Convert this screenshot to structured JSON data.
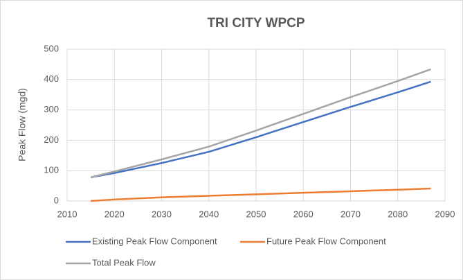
{
  "chart_data": {
    "type": "line",
    "title": "TRI CITY WPCP",
    "y_label": "Peak Flow (mgd)",
    "x": [
      2015,
      2020,
      2030,
      2040,
      2050,
      2060,
      2070,
      2080,
      2087
    ],
    "series": [
      {
        "name": "Existing Peak Flow Component",
        "color": "#4472c4",
        "values": [
          78,
          92,
          125,
          162,
          210,
          260,
          310,
          358,
          393
        ]
      },
      {
        "name": "Future Peak Flow Component",
        "color": "#ed7d31",
        "values": [
          0,
          5,
          12,
          17,
          22,
          27,
          32,
          37,
          41
        ]
      },
      {
        "name": "Total Peak Flow",
        "color": "#a5a5a5",
        "values": [
          78,
          97,
          137,
          179,
          232,
          287,
          342,
          395,
          434
        ]
      }
    ],
    "xlim": [
      2010,
      2090
    ],
    "xticks": [
      2010,
      2020,
      2030,
      2040,
      2050,
      2060,
      2070,
      2080,
      2090
    ],
    "ylim": [
      0,
      500
    ],
    "yticks": [
      0,
      100,
      200,
      300,
      400,
      500
    ],
    "grid": true,
    "legend": "bottom"
  }
}
